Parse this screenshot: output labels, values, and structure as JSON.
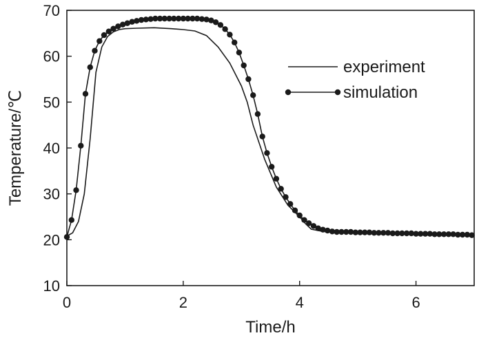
{
  "chart_data": {
    "type": "line",
    "title": "",
    "xlabel": "Time/h",
    "ylabel": "Temperature/℃",
    "xlim": [
      0,
      7
    ],
    "ylim": [
      10,
      70
    ],
    "xticks": [
      0,
      2,
      4,
      6
    ],
    "yticks": [
      10,
      20,
      30,
      40,
      50,
      60,
      70
    ],
    "grid": false,
    "legend_position": "top-right",
    "series": [
      {
        "name": "experiment",
        "style": "line",
        "color": "#1a1a1a",
        "x": [
          0,
          0.1,
          0.2,
          0.3,
          0.4,
          0.5,
          0.6,
          0.7,
          0.8,
          0.9,
          1.0,
          1.2,
          1.5,
          1.8,
          2.0,
          2.2,
          2.4,
          2.6,
          2.8,
          3.0,
          3.1,
          3.2,
          3.4,
          3.6,
          3.8,
          4.0,
          4.1,
          4.2,
          4.4,
          4.6,
          5.0,
          5.5,
          6.0,
          6.5,
          7.0
        ],
        "y": [
          20.8,
          21.5,
          24.0,
          30.0,
          42.0,
          56.5,
          62.0,
          64.3,
          65.3,
          65.8,
          66.0,
          66.1,
          66.2,
          66.0,
          65.8,
          65.5,
          64.5,
          62.0,
          58.5,
          53.5,
          50.0,
          45.0,
          37.5,
          31.5,
          27.5,
          25.0,
          23.5,
          22.3,
          21.8,
          21.6,
          21.5,
          21.3,
          21.2,
          21.1,
          21.0
        ]
      },
      {
        "name": "simulation",
        "style": "line-marker",
        "color": "#1a1a1a",
        "x": [
          0,
          0.08,
          0.16,
          0.24,
          0.32,
          0.4,
          0.48,
          0.56,
          0.64,
          0.72,
          0.8,
          0.88,
          0.96,
          1.04,
          1.12,
          1.2,
          1.28,
          1.36,
          1.44,
          1.52,
          1.6,
          1.68,
          1.76,
          1.84,
          1.92,
          2.0,
          2.08,
          2.16,
          2.24,
          2.32,
          2.4,
          2.48,
          2.56,
          2.64,
          2.72,
          2.8,
          2.88,
          2.96,
          3.04,
          3.12,
          3.2,
          3.28,
          3.36,
          3.44,
          3.52,
          3.6,
          3.68,
          3.76,
          3.84,
          3.92,
          4.0,
          4.08,
          4.16,
          4.24,
          4.32,
          4.4,
          4.48,
          4.56,
          4.64,
          4.72,
          4.8,
          4.88,
          4.96,
          5.04,
          5.12,
          5.2,
          5.28,
          5.36,
          5.44,
          5.52,
          5.6,
          5.68,
          5.76,
          5.84,
          5.92,
          6.0,
          6.08,
          6.16,
          6.24,
          6.32,
          6.4,
          6.48,
          6.56,
          6.64,
          6.72,
          6.8,
          6.88,
          6.96
        ],
        "y": [
          20.6,
          24.3,
          30.8,
          40.5,
          51.8,
          57.6,
          61.2,
          63.3,
          64.6,
          65.4,
          66.0,
          66.5,
          66.9,
          67.2,
          67.5,
          67.7,
          67.9,
          68.0,
          68.1,
          68.2,
          68.2,
          68.2,
          68.2,
          68.2,
          68.2,
          68.2,
          68.2,
          68.2,
          68.2,
          68.1,
          68.0,
          67.8,
          67.4,
          66.8,
          65.9,
          64.7,
          63.0,
          60.8,
          58.0,
          55.0,
          51.5,
          47.4,
          42.5,
          38.9,
          35.9,
          33.3,
          31.1,
          29.3,
          27.8,
          26.4,
          25.3,
          24.3,
          23.6,
          23.0,
          22.5,
          22.2,
          22.0,
          21.8,
          21.7,
          21.7,
          21.7,
          21.7,
          21.6,
          21.6,
          21.6,
          21.6,
          21.5,
          21.5,
          21.5,
          21.5,
          21.4,
          21.4,
          21.4,
          21.4,
          21.4,
          21.3,
          21.3,
          21.3,
          21.3,
          21.2,
          21.2,
          21.2,
          21.2,
          21.2,
          21.1,
          21.1,
          21.1,
          21.0
        ]
      }
    ]
  }
}
